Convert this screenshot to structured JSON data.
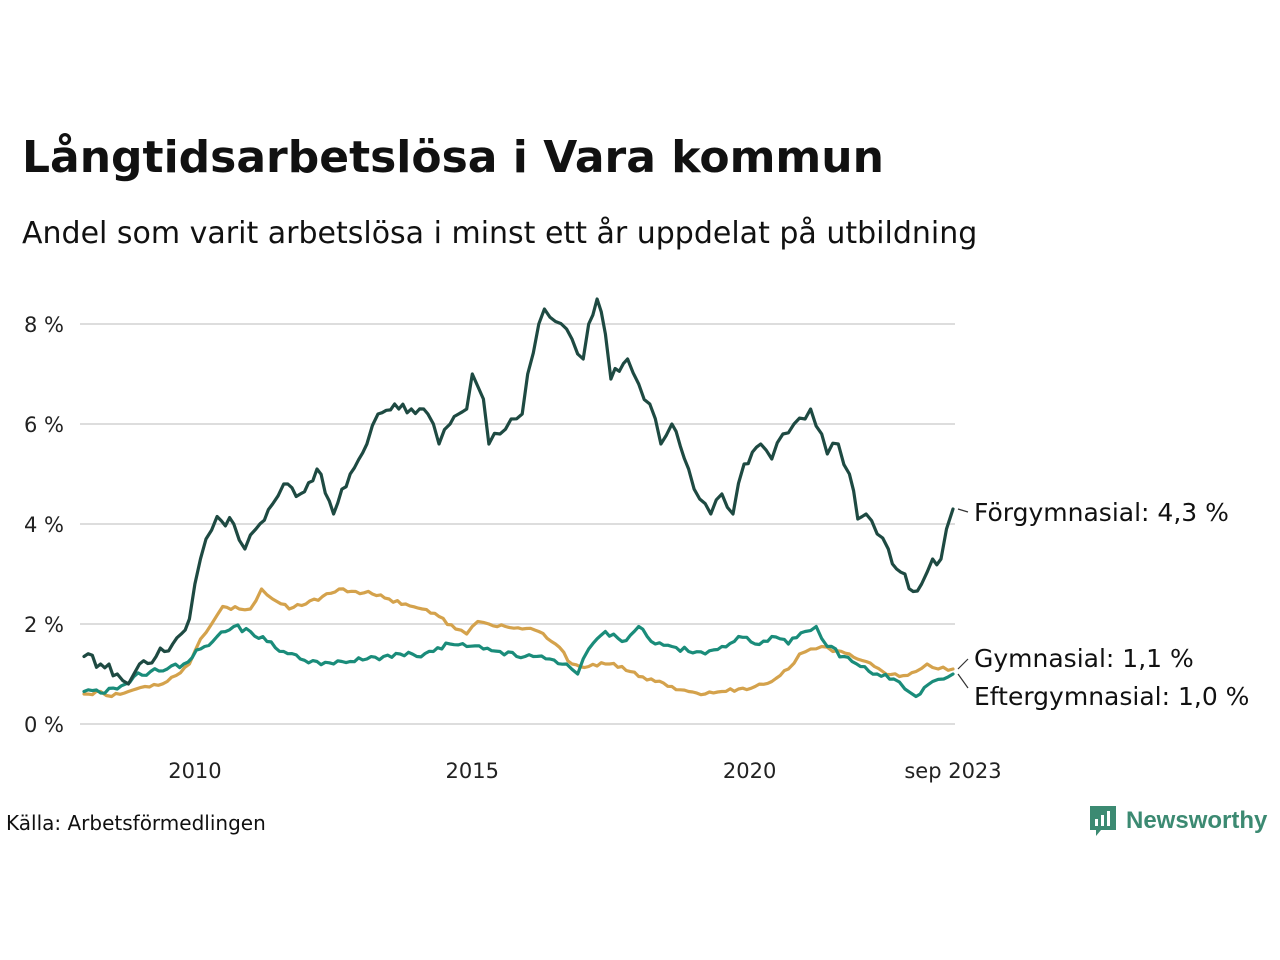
{
  "header": {
    "title": "Långtidsarbetslösa i Vara kommun",
    "subtitle": "Andel som varit arbetslösa i minst ett år uppdelat på utbildning"
  },
  "footer": {
    "source": "Källa: Arbetsförmedlingen",
    "brand": "Newsworthy"
  },
  "colors": {
    "forgymnasial": "#1e4a42",
    "gymnasial": "#d4a24c",
    "eftergymnasial": "#1a8c7a",
    "grid": "#dddddd",
    "brand": "#3c8a72"
  },
  "chart_data": {
    "type": "line",
    "title": "Långtidsarbetslösa i Vara kommun",
    "xlabel": "",
    "ylabel": "",
    "x_start": 2008.0,
    "x_end": 2023.667,
    "ylim": [
      0,
      8.5
    ],
    "y_ticks": [
      0,
      2,
      4,
      6,
      8
    ],
    "y_tick_labels": [
      "0 %",
      "2 %",
      "4 %",
      "6 %",
      "8 %"
    ],
    "x_ticks": [
      2010,
      2015,
      2020,
      2023.667
    ],
    "x_tick_labels": [
      "2010",
      "2015",
      "2020",
      "sep 2023"
    ],
    "series": [
      {
        "name": "Förgymnasial",
        "key": "forgymnasial",
        "label": "Förgymnasial: 4,3 %",
        "points": [
          [
            2008.0,
            1.35
          ],
          [
            2008.3,
            1.2
          ],
          [
            2008.6,
            1.0
          ],
          [
            2008.8,
            0.8
          ],
          [
            2009.0,
            1.2
          ],
          [
            2009.3,
            1.35
          ],
          [
            2009.6,
            1.6
          ],
          [
            2009.9,
            2.1
          ],
          [
            2010.0,
            2.8
          ],
          [
            2010.2,
            3.7
          ],
          [
            2010.4,
            4.15
          ],
          [
            2010.7,
            4.0
          ],
          [
            2010.9,
            3.5
          ],
          [
            2011.1,
            3.9
          ],
          [
            2011.4,
            4.4
          ],
          [
            2011.6,
            4.8
          ],
          [
            2011.9,
            4.6
          ],
          [
            2012.2,
            5.1
          ],
          [
            2012.5,
            4.2
          ],
          [
            2012.8,
            5.0
          ],
          [
            2013.1,
            5.6
          ],
          [
            2013.3,
            6.2
          ],
          [
            2013.6,
            6.4
          ],
          [
            2013.9,
            6.3
          ],
          [
            2014.2,
            6.2
          ],
          [
            2014.4,
            5.6
          ],
          [
            2014.6,
            6.0
          ],
          [
            2014.9,
            6.3
          ],
          [
            2015.0,
            7.0
          ],
          [
            2015.2,
            6.5
          ],
          [
            2015.3,
            5.6
          ],
          [
            2015.5,
            5.8
          ],
          [
            2015.7,
            6.1
          ],
          [
            2015.9,
            6.2
          ],
          [
            2016.0,
            7.0
          ],
          [
            2016.2,
            8.0
          ],
          [
            2016.3,
            8.3
          ],
          [
            2016.5,
            8.05
          ],
          [
            2016.7,
            7.9
          ],
          [
            2016.9,
            7.4
          ],
          [
            2017.0,
            7.3
          ],
          [
            2017.1,
            8.0
          ],
          [
            2017.25,
            8.5
          ],
          [
            2017.4,
            7.8
          ],
          [
            2017.5,
            6.9
          ],
          [
            2017.8,
            7.3
          ],
          [
            2018.0,
            6.8
          ],
          [
            2018.2,
            6.4
          ],
          [
            2018.4,
            5.6
          ],
          [
            2018.6,
            6.0
          ],
          [
            2018.9,
            5.1
          ],
          [
            2019.1,
            4.5
          ],
          [
            2019.3,
            4.2
          ],
          [
            2019.5,
            4.6
          ],
          [
            2019.7,
            4.2
          ],
          [
            2019.9,
            5.2
          ],
          [
            2020.2,
            5.6
          ],
          [
            2020.4,
            5.3
          ],
          [
            2020.6,
            5.8
          ],
          [
            2020.8,
            6.0
          ],
          [
            2021.0,
            6.1
          ],
          [
            2021.1,
            6.3
          ],
          [
            2021.3,
            5.8
          ],
          [
            2021.4,
            5.4
          ],
          [
            2021.6,
            5.6
          ],
          [
            2021.8,
            5.0
          ],
          [
            2021.95,
            4.1
          ],
          [
            2022.1,
            4.2
          ],
          [
            2022.3,
            3.8
          ],
          [
            2022.5,
            3.5
          ],
          [
            2022.65,
            3.1
          ],
          [
            2022.8,
            3.0
          ],
          [
            2022.95,
            2.65
          ],
          [
            2023.1,
            2.8
          ],
          [
            2023.3,
            3.3
          ],
          [
            2023.45,
            3.3
          ],
          [
            2023.55,
            3.9
          ],
          [
            2023.667,
            4.3
          ]
        ]
      },
      {
        "name": "Gymnasial",
        "key": "gymnasial",
        "label": "Gymnasial: 1,1 %",
        "points": [
          [
            2008.0,
            0.6
          ],
          [
            2008.3,
            0.65
          ],
          [
            2008.5,
            0.55
          ],
          [
            2008.8,
            0.65
          ],
          [
            2009.1,
            0.75
          ],
          [
            2009.5,
            0.85
          ],
          [
            2009.9,
            1.2
          ],
          [
            2010.1,
            1.7
          ],
          [
            2010.3,
            2.0
          ],
          [
            2010.5,
            2.35
          ],
          [
            2010.8,
            2.3
          ],
          [
            2011.0,
            2.3
          ],
          [
            2011.2,
            2.7
          ],
          [
            2011.4,
            2.5
          ],
          [
            2011.7,
            2.3
          ],
          [
            2012.0,
            2.4
          ],
          [
            2012.3,
            2.55
          ],
          [
            2012.6,
            2.7
          ],
          [
            2012.9,
            2.65
          ],
          [
            2013.2,
            2.6
          ],
          [
            2013.5,
            2.5
          ],
          [
            2013.8,
            2.4
          ],
          [
            2014.1,
            2.3
          ],
          [
            2014.4,
            2.15
          ],
          [
            2014.7,
            1.9
          ],
          [
            2014.9,
            1.8
          ],
          [
            2015.1,
            2.05
          ],
          [
            2015.3,
            2.0
          ],
          [
            2015.6,
            1.95
          ],
          [
            2015.9,
            1.9
          ],
          [
            2016.2,
            1.85
          ],
          [
            2016.5,
            1.6
          ],
          [
            2016.8,
            1.2
          ],
          [
            2017.1,
            1.15
          ],
          [
            2017.4,
            1.2
          ],
          [
            2017.7,
            1.15
          ],
          [
            2018.0,
            0.95
          ],
          [
            2018.3,
            0.85
          ],
          [
            2018.6,
            0.75
          ],
          [
            2018.9,
            0.65
          ],
          [
            2019.2,
            0.6
          ],
          [
            2019.5,
            0.65
          ],
          [
            2019.8,
            0.7
          ],
          [
            2020.1,
            0.75
          ],
          [
            2020.4,
            0.85
          ],
          [
            2020.7,
            1.1
          ],
          [
            2020.9,
            1.4
          ],
          [
            2021.1,
            1.5
          ],
          [
            2021.3,
            1.55
          ],
          [
            2021.5,
            1.45
          ],
          [
            2021.8,
            1.4
          ],
          [
            2022.1,
            1.25
          ],
          [
            2022.4,
            1.05
          ],
          [
            2022.7,
            0.95
          ],
          [
            2023.0,
            1.05
          ],
          [
            2023.2,
            1.2
          ],
          [
            2023.4,
            1.1
          ],
          [
            2023.667,
            1.1
          ]
        ]
      },
      {
        "name": "Eftergymnasial",
        "key": "eftergymnasial",
        "label": "Eftergymnasial: 1,0 %",
        "points": [
          [
            2008.0,
            0.65
          ],
          [
            2008.3,
            0.62
          ],
          [
            2008.6,
            0.7
          ],
          [
            2008.9,
            0.95
          ],
          [
            2009.2,
            1.05
          ],
          [
            2009.5,
            1.1
          ],
          [
            2009.8,
            1.2
          ],
          [
            2010.1,
            1.5
          ],
          [
            2010.4,
            1.75
          ],
          [
            2010.7,
            1.95
          ],
          [
            2011.0,
            1.85
          ],
          [
            2011.3,
            1.65
          ],
          [
            2011.6,
            1.45
          ],
          [
            2011.9,
            1.3
          ],
          [
            2012.2,
            1.25
          ],
          [
            2012.5,
            1.2
          ],
          [
            2012.8,
            1.25
          ],
          [
            2013.1,
            1.3
          ],
          [
            2013.4,
            1.35
          ],
          [
            2013.7,
            1.4
          ],
          [
            2014.0,
            1.35
          ],
          [
            2014.3,
            1.45
          ],
          [
            2014.6,
            1.6
          ],
          [
            2014.9,
            1.55
          ],
          [
            2015.2,
            1.5
          ],
          [
            2015.5,
            1.45
          ],
          [
            2015.8,
            1.35
          ],
          [
            2016.1,
            1.35
          ],
          [
            2016.4,
            1.3
          ],
          [
            2016.7,
            1.2
          ],
          [
            2016.9,
            1.0
          ],
          [
            2017.1,
            1.5
          ],
          [
            2017.4,
            1.85
          ],
          [
            2017.7,
            1.65
          ],
          [
            2018.0,
            1.95
          ],
          [
            2018.3,
            1.6
          ],
          [
            2018.6,
            1.55
          ],
          [
            2018.9,
            1.45
          ],
          [
            2019.2,
            1.4
          ],
          [
            2019.5,
            1.55
          ],
          [
            2019.8,
            1.75
          ],
          [
            2020.1,
            1.6
          ],
          [
            2020.4,
            1.75
          ],
          [
            2020.7,
            1.6
          ],
          [
            2021.0,
            1.85
          ],
          [
            2021.2,
            1.95
          ],
          [
            2021.4,
            1.55
          ],
          [
            2021.7,
            1.35
          ],
          [
            2022.0,
            1.15
          ],
          [
            2022.3,
            1.0
          ],
          [
            2022.6,
            0.9
          ],
          [
            2022.8,
            0.7
          ],
          [
            2023.0,
            0.55
          ],
          [
            2023.3,
            0.85
          ],
          [
            2023.5,
            0.9
          ],
          [
            2023.667,
            1.0
          ]
        ]
      }
    ]
  }
}
